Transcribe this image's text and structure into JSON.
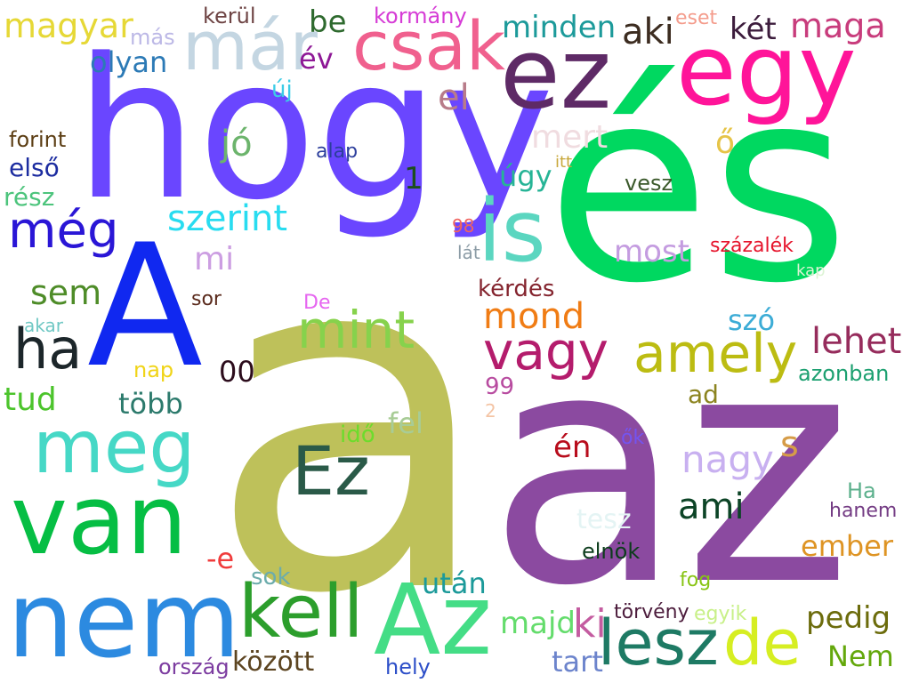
{
  "words": [
    {
      "text": "a",
      "color": "#bec15a"
    },
    {
      "text": "az",
      "color": "#8b4aa0"
    },
    {
      "text": "és",
      "color": "#00d860"
    },
    {
      "text": "hogy",
      "color": "#6a46ff"
    },
    {
      "text": "A",
      "color": "#1028f0"
    },
    {
      "text": "ez",
      "color": "#5e2a66"
    },
    {
      "text": "egy",
      "color": "#ff1499"
    },
    {
      "text": "is",
      "color": "#5bd6c0"
    },
    {
      "text": "már",
      "color": "#c4d6e2"
    },
    {
      "text": "csak",
      "color": "#f0608e"
    },
    {
      "text": "nem",
      "color": "#2c8ae0"
    },
    {
      "text": "van",
      "color": "#06be44"
    },
    {
      "text": "Az",
      "color": "#44dd86"
    },
    {
      "text": "meg",
      "color": "#46d8c6"
    },
    {
      "text": "kell",
      "color": "#2c9e2c"
    },
    {
      "text": "lesz",
      "color": "#1e7a64"
    },
    {
      "text": "de",
      "color": "#d6ee22"
    },
    {
      "text": "Ez",
      "color": "#2a5a48"
    },
    {
      "text": "amely",
      "color": "#bcbc12"
    },
    {
      "text": "vagy",
      "color": "#b41c6c"
    },
    {
      "text": "mint",
      "color": "#86d24c"
    },
    {
      "text": "ha",
      "color": "#1c262a"
    },
    {
      "text": "még",
      "color": "#2a16d6"
    },
    {
      "text": "magyar",
      "color": "#e6d836"
    },
    {
      "text": "olyan",
      "color": "#2c7ab6"
    },
    {
      "text": "más",
      "color": "#bcb8e6"
    },
    {
      "text": "kerül",
      "color": "#6e4444"
    },
    {
      "text": "be",
      "color": "#2e6a2e"
    },
    {
      "text": "év",
      "color": "#8e1896"
    },
    {
      "text": "kormány",
      "color": "#d63cd6"
    },
    {
      "text": "minden",
      "color": "#1c9a9a"
    },
    {
      "text": "aki",
      "color": "#3c2c20"
    },
    {
      "text": "eset",
      "color": "#f49c8c"
    },
    {
      "text": "két",
      "color": "#3c1c3c"
    },
    {
      "text": "maga",
      "color": "#c83c7c"
    },
    {
      "text": "új",
      "color": "#3ccce6"
    },
    {
      "text": "el",
      "color": "#b87c8a"
    },
    {
      "text": "forint",
      "color": "#5c3e14"
    },
    {
      "text": "alap",
      "color": "#2c3e9c"
    },
    {
      "text": "mert",
      "color": "#f0dce0"
    },
    {
      "text": "ő",
      "color": "#e6c448"
    },
    {
      "text": "első",
      "color": "#1c2ca0"
    },
    {
      "text": "jó",
      "color": "#6cb46c"
    },
    {
      "text": "1",
      "color": "#1c4e1c"
    },
    {
      "text": "itt",
      "color": "#c8a83c"
    },
    {
      "text": "úgy",
      "color": "#26b496"
    },
    {
      "text": "vesz",
      "color": "#3c5a2c"
    },
    {
      "text": "rész",
      "color": "#4cc47c"
    },
    {
      "text": "szerint",
      "color": "#28dcf0"
    },
    {
      "text": "98",
      "color": "#f06460"
    },
    {
      "text": "lát",
      "color": "#8c9ca6"
    },
    {
      "text": "most",
      "color": "#c49ce0"
    },
    {
      "text": "százalék",
      "color": "#e6142c"
    },
    {
      "text": "kap",
      "color": "#dcf4d4"
    },
    {
      "text": "mi",
      "color": "#cc9ee2"
    },
    {
      "text": "sem",
      "color": "#4e8c28"
    },
    {
      "text": "sor",
      "color": "#5a2a1c"
    },
    {
      "text": "De",
      "color": "#e666f0"
    },
    {
      "text": "kérdés",
      "color": "#84242e"
    },
    {
      "text": "mond",
      "color": "#f07c14"
    },
    {
      "text": "akar",
      "color": "#70c8c4"
    },
    {
      "text": "szó",
      "color": "#3cacd6"
    },
    {
      "text": "lehet",
      "color": "#962c5c"
    },
    {
      "text": "nap",
      "color": "#f0d418"
    },
    {
      "text": "00",
      "color": "#2c0c1c"
    },
    {
      "text": "azonban",
      "color": "#1ca070"
    },
    {
      "text": "tud",
      "color": "#4cc42c"
    },
    {
      "text": "több",
      "color": "#2c7a6c"
    },
    {
      "text": "99",
      "color": "#b84ca0"
    },
    {
      "text": "2",
      "color": "#f4c4a4"
    },
    {
      "text": "ad",
      "color": "#8c8420"
    },
    {
      "text": "idő",
      "color": "#6cdc2c"
    },
    {
      "text": "fel",
      "color": "#a8cc96"
    },
    {
      "text": "én",
      "color": "#b80c1c"
    },
    {
      "text": "ők",
      "color": "#7454f0"
    },
    {
      "text": "nagy",
      "color": "#c8b0f0"
    },
    {
      "text": "s",
      "color": "#d69c48"
    },
    {
      "text": "ami",
      "color": "#0c4426"
    },
    {
      "text": "Ha",
      "color": "#5cb08c"
    },
    {
      "text": "hanem",
      "color": "#743c84"
    },
    {
      "text": "tesz",
      "color": "#e4f4f4"
    },
    {
      "text": "ember",
      "color": "#de9424"
    },
    {
      "text": "-e",
      "color": "#f03c3c"
    },
    {
      "text": "elnök",
      "color": "#0c3c1c"
    },
    {
      "text": "sok",
      "color": "#6cacac"
    },
    {
      "text": "után",
      "color": "#1c9a9a"
    },
    {
      "text": "fog",
      "color": "#88c414"
    },
    {
      "text": "majd",
      "color": "#64dc6c"
    },
    {
      "text": "ki",
      "color": "#c45ca0"
    },
    {
      "text": "törvény",
      "color": "#4c1c3c"
    },
    {
      "text": "egyik",
      "color": "#c8f088"
    },
    {
      "text": "pedig",
      "color": "#6c6c0c"
    },
    {
      "text": "Nem",
      "color": "#64a80c"
    },
    {
      "text": "ország",
      "color": "#7c3ca0"
    },
    {
      "text": "között",
      "color": "#5c4420"
    },
    {
      "text": "hely",
      "color": "#2c4ec8"
    },
    {
      "text": "tart",
      "color": "#6c84cc"
    }
  ]
}
